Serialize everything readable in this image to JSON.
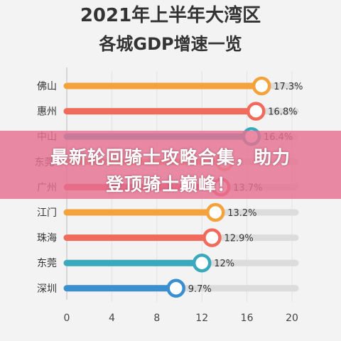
{
  "chart_data": {
    "type": "bar",
    "title_line1": "2021年上半年大湾区",
    "title_line2": "各城GDP增速一览",
    "categories": [
      "佛山",
      "惠州",
      "中山",
      "东莞*",
      "广州",
      "江门",
      "珠海",
      "东莞",
      "深圳"
    ],
    "values": [
      17.3,
      16.8,
      16.4,
      14.0,
      13.7,
      13.2,
      12.9,
      12.0,
      9.7
    ],
    "value_labels": [
      "17.3%",
      "16.8%",
      "16.4%",
      "",
      "13.7%",
      "13.2%",
      "12.9%",
      "12%",
      "9.7%"
    ],
    "bar_colors": [
      "#f4a23c",
      "#f06b5b",
      "#3aa9be",
      "#f3a77a",
      "#e85a6b",
      "#f4a23c",
      "#f06b5b",
      "#3aa9be",
      "#3a8fd0"
    ],
    "xlim": [
      0,
      20
    ],
    "xticks": [
      0,
      4,
      8,
      12,
      16,
      20
    ],
    "grid": true
  },
  "banner": {
    "line1": "最新轮回骑士攻略合集，助力",
    "line2": "登顶骑士巅峰！"
  },
  "colors": {
    "track": "#dcdcdc",
    "title": "#333333",
    "banner": "#e77091"
  }
}
